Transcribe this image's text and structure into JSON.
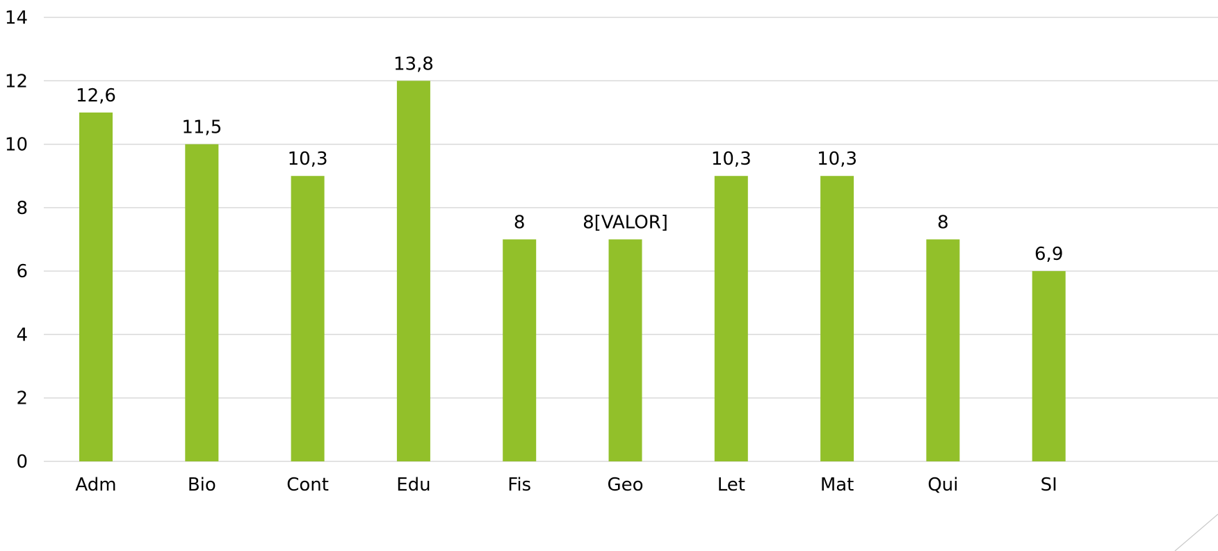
{
  "chart_data": {
    "type": "bar",
    "categories": [
      "Adm",
      "Bio",
      "Cont",
      "Edu",
      "Fis",
      "Geo",
      "Let",
      "Mat",
      "Qui",
      "SI"
    ],
    "values": [
      11,
      10,
      9,
      12,
      7,
      7,
      9,
      9,
      7,
      6
    ],
    "data_labels": [
      "12,6",
      "11,5",
      "10,3",
      "13,8",
      "8",
      "8[VALOR]",
      "10,3",
      "10,3",
      "8",
      "6,9"
    ],
    "yticks": [
      "0",
      "2",
      "4",
      "6",
      "8",
      "10",
      "12",
      "14"
    ],
    "ylim": [
      0,
      14
    ],
    "grid": true,
    "legend": "none",
    "title": "",
    "xlabel": "",
    "ylabel": "",
    "colors": {
      "bar": "#92c02a",
      "grid": "#d9d9d9",
      "text": "#000000"
    }
  }
}
